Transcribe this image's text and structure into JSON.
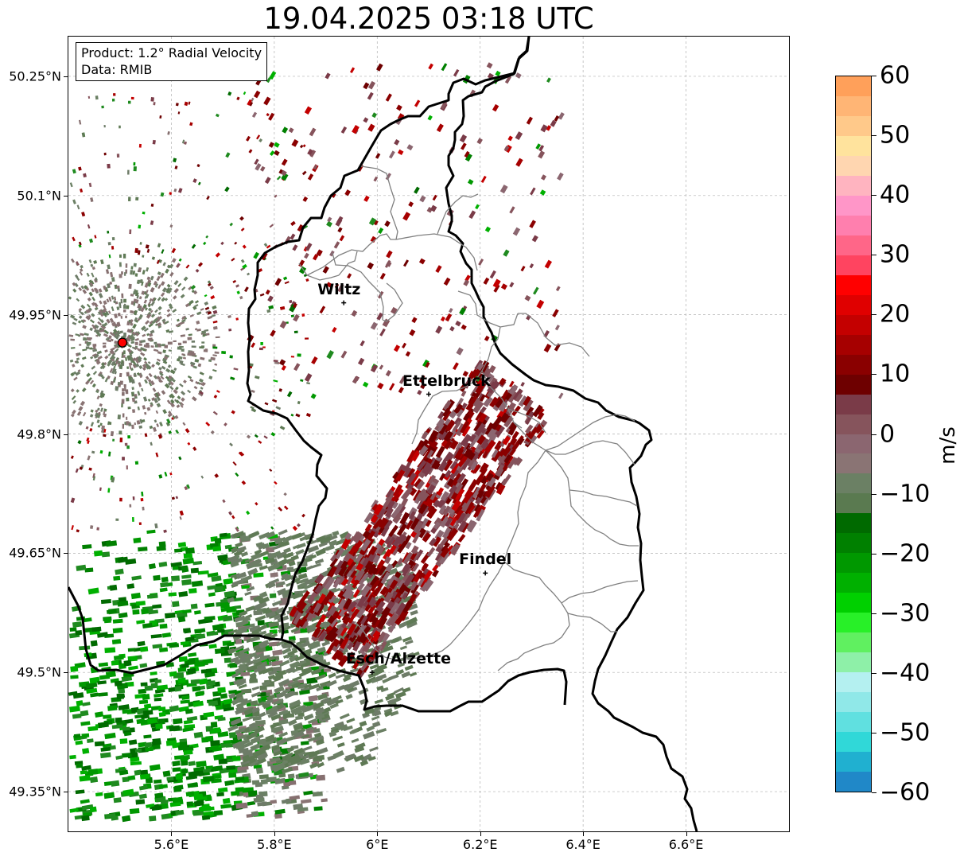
{
  "title": "19.04.2025 03:18 UTC",
  "info": {
    "product": "Product: 1.2° Radial Velocity",
    "data_source": "Data: RMIB"
  },
  "map": {
    "lon_range": [
      5.4,
      6.8
    ],
    "lat_range": [
      49.3,
      50.3
    ],
    "lat_ticks": [
      {
        "value": 50.25,
        "label": "50.25°N"
      },
      {
        "value": 50.1,
        "label": "50.1°N"
      },
      {
        "value": 49.95,
        "label": "49.95°N"
      },
      {
        "value": 49.8,
        "label": "49.8°N"
      },
      {
        "value": 49.65,
        "label": "49.65°N"
      },
      {
        "value": 49.5,
        "label": "49.5°N"
      },
      {
        "value": 49.35,
        "label": "49.35°N"
      }
    ],
    "lon_ticks": [
      {
        "value": 5.6,
        "label": "5.6°E"
      },
      {
        "value": 5.8,
        "label": "5.8°E"
      },
      {
        "value": 6.0,
        "label": "6°E"
      },
      {
        "value": 6.2,
        "label": "6.2°E"
      },
      {
        "value": 6.4,
        "label": "6.4°E"
      },
      {
        "value": 6.6,
        "label": "6.6°E"
      }
    ],
    "grid": true,
    "radar_site": {
      "lon": 5.505,
      "lat": 49.915
    },
    "cities": [
      {
        "name": "Wiltz",
        "lon": 5.935,
        "lat": 49.965
      },
      {
        "name": "Ettelbruck",
        "lon": 6.1,
        "lat": 49.85
      },
      {
        "name": "Findel",
        "lon": 6.21,
        "lat": 49.625
      },
      {
        "name": "Esch/Alzette",
        "lon": 5.99,
        "lat": 49.5
      }
    ]
  },
  "colorbar": {
    "label": "m/s",
    "min": -60,
    "max": 60,
    "ticks": [
      "60",
      "50",
      "40",
      "30",
      "20",
      "10",
      "0",
      "−10",
      "−20",
      "−30",
      "−40",
      "−50",
      "−60"
    ],
    "tick_values": [
      60,
      50,
      40,
      30,
      20,
      10,
      0,
      -10,
      -20,
      -30,
      -40,
      -50,
      -60
    ],
    "colors_top_to_bottom": [
      "#ffa05a",
      "#ffb575",
      "#ffc98a",
      "#ffe39d",
      "#ffd6b0",
      "#ffb4c0",
      "#ff96c8",
      "#ff7fae",
      "#ff6688",
      "#ff4460",
      "#ff0000",
      "#e00000",
      "#c40000",
      "#a60000",
      "#8a0000",
      "#6e0000",
      "#7a3b48",
      "#86545c",
      "#8b6670",
      "#8a7474",
      "#6b8064",
      "#5a7a50",
      "#006a00",
      "#008000",
      "#009800",
      "#00b000",
      "#00d000",
      "#28f028",
      "#60f060",
      "#8ef0a8",
      "#b4f0f0",
      "#90e8e8",
      "#60e0e0",
      "#30d8d8",
      "#20b0d0",
      "#2088c8"
    ]
  }
}
